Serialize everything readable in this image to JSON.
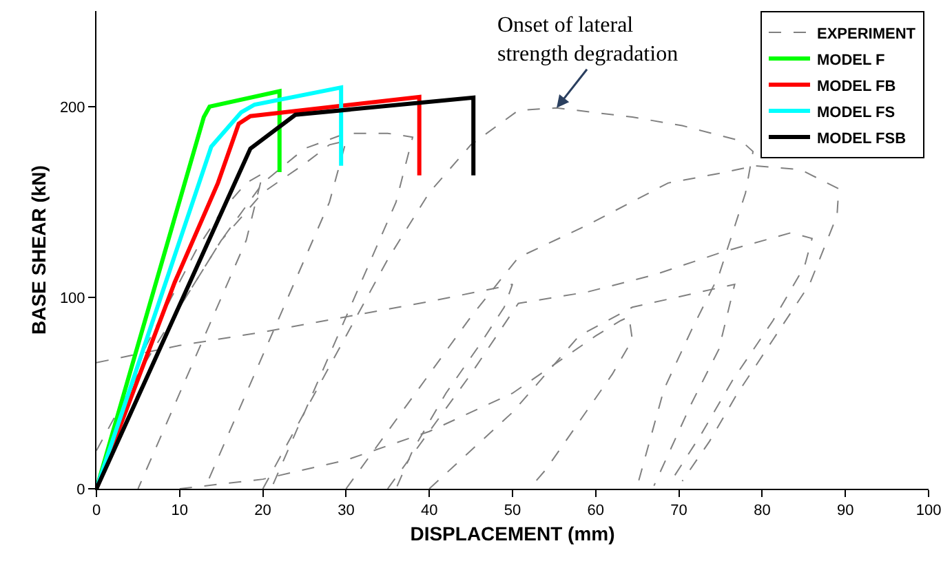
{
  "chart_data": {
    "type": "line",
    "xlabel": "DISPLACEMENT (mm)",
    "ylabel": "BASE SHEAR (kN)",
    "xlim": [
      0,
      100
    ],
    "ylim": [
      0,
      250
    ],
    "xticks": [
      0,
      10,
      20,
      30,
      40,
      50,
      60,
      70,
      80,
      90,
      100
    ],
    "yticks": [
      0,
      100,
      200
    ],
    "legend": "top right",
    "marker": "none",
    "annotations": [
      {
        "text": "Onset of lateral\nstrength degradation",
        "x": 55.3,
        "y": 199.3
      }
    ],
    "series": [
      {
        "name": "EXPERIMENT",
        "color": "#808080",
        "line_style": "dashed",
        "x": [
          0,
          3,
          6,
          9,
          12,
          15,
          18,
          20,
          18,
          14,
          10,
          6,
          5,
          null,
          0,
          5,
          10,
          15,
          20,
          25,
          28,
          30,
          28,
          24,
          20,
          16,
          13,
          null,
          0,
          5,
          10,
          15,
          20,
          25,
          30,
          35,
          38,
          36,
          32,
          28,
          24,
          21,
          null,
          10,
          20,
          30,
          40,
          50,
          55,
          60,
          63,
          64,
          64.4,
          62,
          58,
          54,
          52,
          null,
          0,
          10,
          20,
          30,
          40,
          48,
          50,
          49,
          46,
          42,
          38,
          36,
          null,
          20,
          25,
          30,
          35,
          40,
          45,
          50.7,
          55.3,
          64.4,
          70.4,
          77.5,
          78.9,
          78,
          74.8,
          71.5,
          68.2,
          65,
          null,
          30,
          35,
          40,
          45,
          50.7,
          59,
          68.7,
          74.8,
          79.1,
          84.6,
          89.2,
          89,
          85.7,
          81.3,
          76.9,
          73.7,
          70.4,
          null,
          35,
          40,
          45,
          50.7,
          59,
          67.1,
          75.3,
          83.5,
          86,
          85.1,
          81.3,
          76.4,
          72.6,
          68.7,
          null,
          40,
          50,
          58,
          64.4,
          76.7,
          74.8,
          71.5,
          67
        ],
        "values": [
          0,
          40,
          75,
          100,
          125,
          145,
          160,
          165,
          130,
          90,
          50,
          10,
          0,
          null,
          0,
          50,
          95,
          130,
          155,
          170,
          180,
          182,
          150,
          110,
          70,
          30,
          0,
          null,
          20,
          60,
          95,
          130,
          160,
          178,
          186,
          186,
          184,
          150,
          110,
          70,
          30,
          0,
          null,
          0,
          5,
          15,
          30,
          50,
          65,
          80,
          88,
          90,
          78,
          60,
          35,
          10,
          0,
          null,
          66,
          75,
          82,
          90,
          98,
          105,
          107,
          95,
          75,
          50,
          20,
          0,
          null,
          0,
          40,
          80,
          120,
          155,
          180,
          198,
          199.3,
          194.5,
          190,
          182,
          176.5,
          154.8,
          111.7,
          83,
          52,
          1.6,
          null,
          0,
          30,
          60,
          90,
          121,
          138,
          160,
          165,
          169,
          167,
          157,
          143,
          107,
          78,
          49,
          25,
          4,
          null,
          0,
          30,
          60,
          97,
          103,
          112,
          124,
          134,
          131,
          116.5,
          88,
          56.5,
          28,
          1.6,
          null,
          0,
          40,
          80,
          95,
          107,
          73,
          44.6,
          1.6
        ]
      },
      {
        "name": "MODEL F",
        "color": "#00ff00",
        "line_style": "solid",
        "x": [
          0,
          12.9,
          13.6,
          22.0,
          22.0
        ],
        "values": [
          0,
          194.5,
          200,
          208,
          165.7
        ]
      },
      {
        "name": "MODEL FB",
        "color": "#ff0000",
        "line_style": "solid",
        "x": [
          0,
          9.4,
          14.6,
          17.1,
          18.5,
          38.8,
          38.8
        ],
        "values": [
          0,
          108,
          160,
          191,
          195,
          205,
          164
        ]
      },
      {
        "name": "MODEL FS",
        "color": "#00ffff",
        "line_style": "solid",
        "x": [
          0,
          13.8,
          17.4,
          19.0,
          29.4,
          29.4
        ],
        "values": [
          0,
          179,
          197,
          201,
          210,
          169
        ]
      },
      {
        "name": "MODEL FSB",
        "color": "#000000",
        "line_style": "solid",
        "x": [
          0,
          18.5,
          23.9,
          45.3,
          45.3
        ],
        "values": [
          0,
          178,
          195.7,
          204.7,
          164
        ]
      }
    ]
  }
}
